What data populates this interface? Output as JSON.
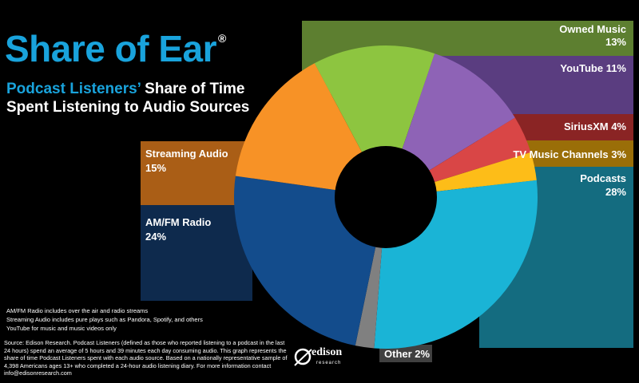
{
  "header": {
    "title": "Share of Ear",
    "registered": "®",
    "subtitle_highlight": "Podcast Listeners’",
    "subtitle_rest": " Share of Time Spent Listening to Audio Sources"
  },
  "chart_data": {
    "type": "pie",
    "title": "Share of Ear",
    "subtitle": "Podcast Listeners’ Share of Time Spent Listening to Audio Sources",
    "unit": "%",
    "slices": [
      {
        "name": "Owned Music",
        "value": 13,
        "label": "Owned Music",
        "value_label": "13%",
        "color": "#8dc540"
      },
      {
        "name": "YouTube",
        "value": 11,
        "label": "YouTube 11%",
        "value_label": "",
        "color": "#8e63b6"
      },
      {
        "name": "SiriusXM",
        "value": 4,
        "label": "SiriusXM 4%",
        "value_label": "",
        "color": "#d94646"
      },
      {
        "name": "TV Music Channels",
        "value": 3,
        "label": "TV Music Channels 3%",
        "value_label": "",
        "color": "#fdbd18"
      },
      {
        "name": "Podcasts",
        "value": 28,
        "label": "Podcasts",
        "value_label": "28%",
        "color": "#1ab4d6"
      },
      {
        "name": "Other",
        "value": 2,
        "label": "Other 2%",
        "value_label": "",
        "color": "#808080"
      },
      {
        "name": "AM/FM Radio",
        "value": 24,
        "label": "AM/FM Radio",
        "value_label": "24%",
        "color": "#134c8c"
      },
      {
        "name": "Streaming Audio",
        "value": 15,
        "label": "Streaming Audio",
        "value_label": "15%",
        "color": "#f79226"
      }
    ]
  },
  "notes": [
    "AM/FM Radio includes over the air and radio streams",
    "Streaming Audio includes pure plays such as Pandora, Spotify, and others",
    "YouTube for music and music videos only"
  ],
  "source": "Source: Edison Research.  Podcast Listeners (defined as those who reported listening to a podcast in the last 24 hours) spend an average of 5 hours and 39 minutes each day consuming audio. This graph represents the share of time Podcast Listeners spent with each audio source. Based on a nationally representative sample of 4,398 Americans ages 13+ who completed a 24-hour audio listening diary.  For more information contact info@edisonresearch.com",
  "logo": {
    "name": "edison",
    "sub": "research"
  }
}
